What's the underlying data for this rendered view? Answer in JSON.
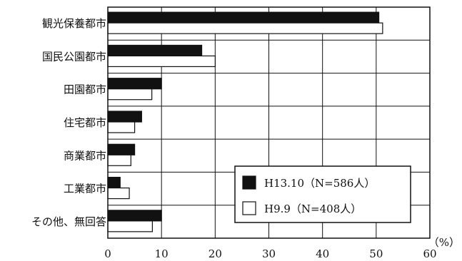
{
  "chart_data": {
    "type": "bar",
    "orientation": "horizontal",
    "categories": [
      "観光保養都市",
      "国民公園都市",
      "田園都市",
      "住宅都市",
      "商業都市",
      "工業都市",
      "その他、無回答"
    ],
    "series": [
      {
        "name": "H13.10（N=586人）",
        "values": [
          50.5,
          17.5,
          10.0,
          6.3,
          5.0,
          2.3,
          10.0
        ],
        "color": "#111111"
      },
      {
        "name": "H9.9（N=408人）",
        "values": [
          51.2,
          20.0,
          8.2,
          5.0,
          4.3,
          4.0,
          8.3
        ],
        "color": "#ffffff"
      }
    ],
    "xlim": [
      0,
      60
    ],
    "xticks": [
      "0",
      "10",
      "20",
      "30",
      "40",
      "50",
      "60"
    ],
    "unit_label": "（%）",
    "grid": true,
    "legend_position": "bottom-right"
  }
}
